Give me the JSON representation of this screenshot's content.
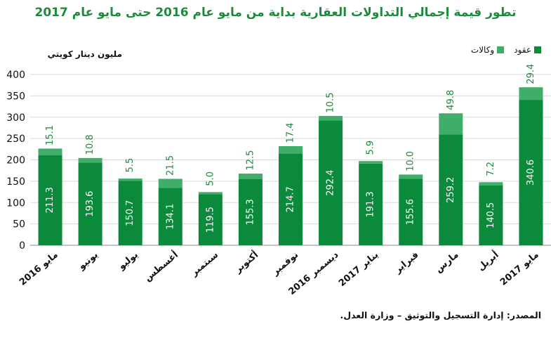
{
  "title": "تطور قيمة إجمالي التداولات العقارية بداية من مايو عام 2016 حتى مايو عام 2017",
  "source": "المصدر: إدارة التسجيل والتوثيق – وزارة العدل.",
  "colors": {
    "contracts": "#0a8a3a",
    "agencies": "#3fae69",
    "grid": "#d9d9d9"
  },
  "chart_data": {
    "type": "bar",
    "stacked": true,
    "ylabel": "مليون دينار كويتي",
    "ylim": [
      0,
      400
    ],
    "yticks": [
      0,
      50,
      100,
      150,
      200,
      250,
      300,
      350,
      400
    ],
    "grid": true,
    "legend_position": "top-right",
    "categories": [
      "مايو 2016",
      "يونيو",
      "يوليو",
      "أغسطس",
      "سبتمبر",
      "أكتوبر",
      "نوفمبر",
      "ديسمبر 2016",
      "يناير 2017",
      "فبراير",
      "مارس",
      "أبريل",
      "مايو 2017"
    ],
    "series": [
      {
        "name": "عقود",
        "values": [
          211.3,
          193.6,
          150.7,
          134.1,
          119.5,
          155.3,
          214.7,
          292.4,
          191.3,
          155.6,
          259.2,
          140.5,
          340.6
        ]
      },
      {
        "name": "وكالات",
        "values": [
          15.1,
          10.8,
          5.5,
          21.5,
          5.0,
          12.5,
          17.4,
          10.5,
          5.9,
          10.0,
          49.8,
          7.2,
          29.4
        ]
      }
    ]
  }
}
